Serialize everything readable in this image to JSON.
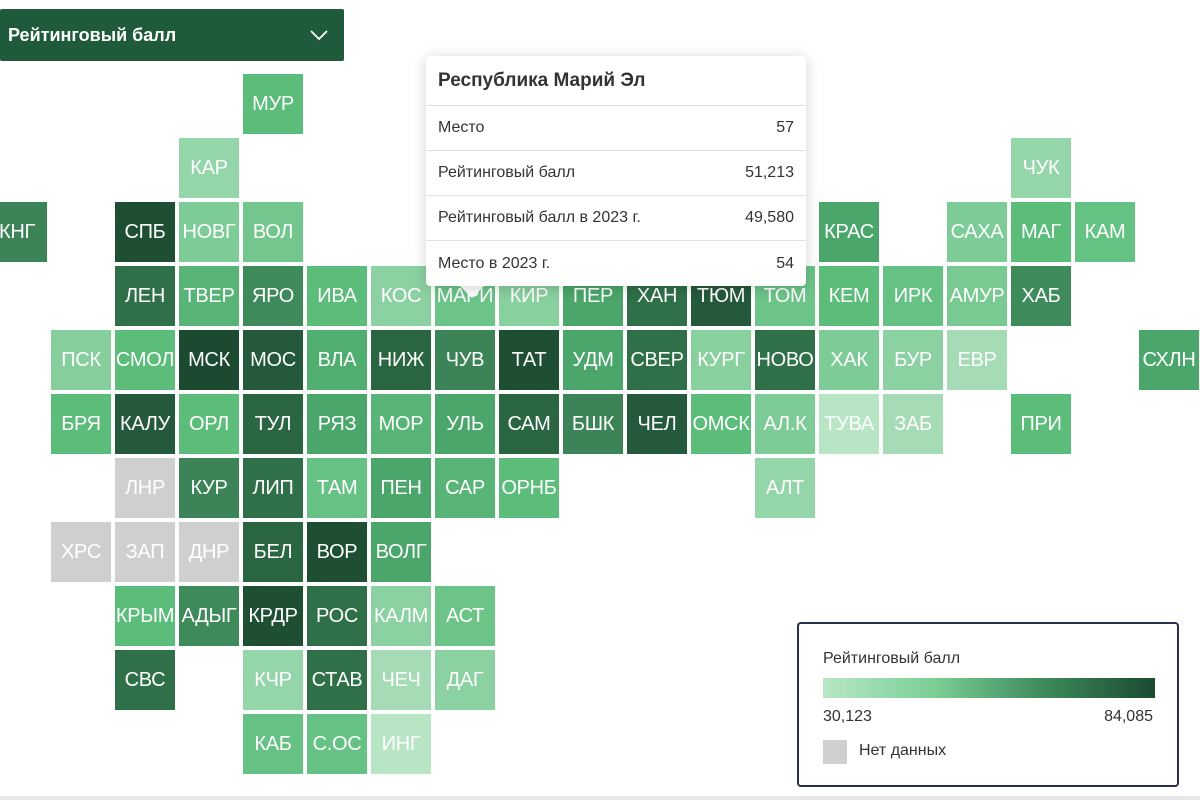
{
  "dropdown": {
    "label": "Рейтинговый балл"
  },
  "tooltip": {
    "title": "Республика Марий Эл",
    "rows": [
      {
        "label": "Место",
        "value": "57"
      },
      {
        "label": "Рейтинговый балл",
        "value": "51,213"
      },
      {
        "label": "Рейтинговый балл в 2023 г.",
        "value": "49,580"
      },
      {
        "label": "Место в 2023 г.",
        "value": "54"
      }
    ]
  },
  "legend": {
    "title": "Рейтинговый балл",
    "min": "30,123",
    "max": "84,085",
    "no_data": "Нет данных"
  },
  "colors": {
    "no_data": "#cfcfcf",
    "scale_light": "#b8e6c5",
    "scale_dark": "#1b4a30"
  },
  "regions": [
    {
      "code": "МУР",
      "col": 3,
      "row": 0,
      "color": "#5cbc7a"
    },
    {
      "code": "КАР",
      "col": 2,
      "row": 1,
      "color": "#95d5aa"
    },
    {
      "code": "ЧУК",
      "col": 15,
      "row": 1,
      "color": "#95d5aa"
    },
    {
      "code": "КНГ",
      "col": -1,
      "row": 2,
      "color": "#3c8457"
    },
    {
      "code": "СПБ",
      "col": 1,
      "row": 2,
      "color": "#1e4f33"
    },
    {
      "code": "НОВГ",
      "col": 2,
      "row": 2,
      "color": "#7dcb96"
    },
    {
      "code": "ВОЛ",
      "col": 3,
      "row": 2,
      "color": "#73c78e"
    },
    {
      "code": "КРАС",
      "col": 12,
      "row": 2,
      "color": "#4aa66a"
    },
    {
      "code": "САХА",
      "col": 14,
      "row": 2,
      "color": "#7dcb96"
    },
    {
      "code": "МАГ",
      "col": 15,
      "row": 2,
      "color": "#5cbc7a"
    },
    {
      "code": "КАМ",
      "col": 16,
      "row": 2,
      "color": "#64c383"
    },
    {
      "code": "ЛЕН",
      "col": 1,
      "row": 3,
      "color": "#2f7048"
    },
    {
      "code": "ТВЕР",
      "col": 2,
      "row": 3,
      "color": "#59b577"
    },
    {
      "code": "ЯРО",
      "col": 3,
      "row": 3,
      "color": "#3f8a5b"
    },
    {
      "code": "ИВА",
      "col": 4,
      "row": 3,
      "color": "#5cbc7a"
    },
    {
      "code": "КОС",
      "col": 5,
      "row": 3,
      "color": "#8cd1a2"
    },
    {
      "code": "МАРИ",
      "col": 6,
      "row": 3,
      "color": "#6cc488"
    },
    {
      "code": "КИР",
      "col": 7,
      "row": 3,
      "color": "#89d09f"
    },
    {
      "code": "ПЕР",
      "col": 8,
      "row": 3,
      "color": "#4aa66a"
    },
    {
      "code": "ХАН",
      "col": 9,
      "row": 3,
      "color": "#2f7048"
    },
    {
      "code": "ТЮМ",
      "col": 10,
      "row": 3,
      "color": "#25593b"
    },
    {
      "code": "ТОМ",
      "col": 11,
      "row": 3,
      "color": "#6cc488"
    },
    {
      "code": "КЕМ",
      "col": 12,
      "row": 3,
      "color": "#5cbc7a"
    },
    {
      "code": "ИРК",
      "col": 13,
      "row": 3,
      "color": "#66c184"
    },
    {
      "code": "АМУР",
      "col": 14,
      "row": 3,
      "color": "#79c992"
    },
    {
      "code": "ХАБ",
      "col": 15,
      "row": 3,
      "color": "#3f8a5b"
    },
    {
      "code": "ПСК",
      "col": 0,
      "row": 4,
      "color": "#86cf9d"
    },
    {
      "code": "СМОЛ",
      "col": 1,
      "row": 4,
      "color": "#5cbc7a"
    },
    {
      "code": "МСК",
      "col": 2,
      "row": 4,
      "color": "#1b4a30"
    },
    {
      "code": "МОС",
      "col": 3,
      "row": 4,
      "color": "#25593b"
    },
    {
      "code": "ВЛА",
      "col": 4,
      "row": 4,
      "color": "#50ae70"
    },
    {
      "code": "НИЖ",
      "col": 5,
      "row": 4,
      "color": "#2a6642"
    },
    {
      "code": "ЧУВ",
      "col": 6,
      "row": 4,
      "color": "#3c8457"
    },
    {
      "code": "ТАТ",
      "col": 7,
      "row": 4,
      "color": "#1e4f33"
    },
    {
      "code": "УДМ",
      "col": 8,
      "row": 4,
      "color": "#4aa66a"
    },
    {
      "code": "СВЕР",
      "col": 9,
      "row": 4,
      "color": "#2f7048"
    },
    {
      "code": "КУРГ",
      "col": 10,
      "row": 4,
      "color": "#89d09f"
    },
    {
      "code": "НОВО",
      "col": 11,
      "row": 4,
      "color": "#2f7048"
    },
    {
      "code": "ХАК",
      "col": 12,
      "row": 4,
      "color": "#7dcb96"
    },
    {
      "code": "БУР",
      "col": 13,
      "row": 4,
      "color": "#8cd1a2"
    },
    {
      "code": "ЕВР",
      "col": 14,
      "row": 4,
      "color": "#a6dcb5"
    },
    {
      "code": "СХЛН",
      "col": 17,
      "row": 4,
      "color": "#4aa66a"
    },
    {
      "code": "БРЯ",
      "col": 0,
      "row": 5,
      "color": "#5cbc7a"
    },
    {
      "code": "КАЛУ",
      "col": 1,
      "row": 5,
      "color": "#25593b"
    },
    {
      "code": "ОРЛ",
      "col": 2,
      "row": 5,
      "color": "#5cbc7a"
    },
    {
      "code": "ТУЛ",
      "col": 3,
      "row": 5,
      "color": "#2a6642"
    },
    {
      "code": "РЯЗ",
      "col": 4,
      "row": 5,
      "color": "#4aa66a"
    },
    {
      "code": "МОР",
      "col": 5,
      "row": 5,
      "color": "#59b577"
    },
    {
      "code": "УЛЬ",
      "col": 6,
      "row": 5,
      "color": "#4aa66a"
    },
    {
      "code": "САМ",
      "col": 7,
      "row": 5,
      "color": "#2a6642"
    },
    {
      "code": "БШК",
      "col": 8,
      "row": 5,
      "color": "#3c8457"
    },
    {
      "code": "ЧЕЛ",
      "col": 9,
      "row": 5,
      "color": "#25593b"
    },
    {
      "code": "ОМСК",
      "col": 10,
      "row": 5,
      "color": "#5cbc7a"
    },
    {
      "code": "АЛ.К",
      "col": 11,
      "row": 5,
      "color": "#7dcb96"
    },
    {
      "code": "ТУВА",
      "col": 12,
      "row": 5,
      "color": "#b8e6c5"
    },
    {
      "code": "ЗАБ",
      "col": 13,
      "row": 5,
      "color": "#a6dcb5"
    },
    {
      "code": "ПРИ",
      "col": 15,
      "row": 5,
      "color": "#5cbc7a"
    },
    {
      "code": "ЛНР",
      "col": 1,
      "row": 6,
      "color": "#cfcfcf"
    },
    {
      "code": "КУР",
      "col": 2,
      "row": 6,
      "color": "#3c8457"
    },
    {
      "code": "ЛИП",
      "col": 3,
      "row": 6,
      "color": "#2f7048"
    },
    {
      "code": "ТАМ",
      "col": 4,
      "row": 6,
      "color": "#66c184"
    },
    {
      "code": "ПЕН",
      "col": 5,
      "row": 6,
      "color": "#4aa66a"
    },
    {
      "code": "САР",
      "col": 6,
      "row": 6,
      "color": "#59b577"
    },
    {
      "code": "ОРНБ",
      "col": 7,
      "row": 6,
      "color": "#5cbc7a"
    },
    {
      "code": "АЛТ",
      "col": 11,
      "row": 6,
      "color": "#95d5aa"
    },
    {
      "code": "ХРС",
      "col": 0,
      "row": 7,
      "color": "#cfcfcf"
    },
    {
      "code": "ЗАП",
      "col": 1,
      "row": 7,
      "color": "#cfcfcf"
    },
    {
      "code": "ДНР",
      "col": 2,
      "row": 7,
      "color": "#cfcfcf"
    },
    {
      "code": "БЕЛ",
      "col": 3,
      "row": 7,
      "color": "#2a6642"
    },
    {
      "code": "ВОР",
      "col": 4,
      "row": 7,
      "color": "#1e4f33"
    },
    {
      "code": "ВОЛГ",
      "col": 5,
      "row": 7,
      "color": "#4aa66a"
    },
    {
      "code": "КРЫМ",
      "col": 1,
      "row": 8,
      "color": "#5cbc7a"
    },
    {
      "code": "АДЫГ",
      "col": 2,
      "row": 8,
      "color": "#3f8a5b"
    },
    {
      "code": "КРДР",
      "col": 3,
      "row": 8,
      "color": "#1e4f33"
    },
    {
      "code": "РОС",
      "col": 4,
      "row": 8,
      "color": "#2f7048"
    },
    {
      "code": "КАЛМ",
      "col": 5,
      "row": 8,
      "color": "#8cd1a2"
    },
    {
      "code": "АСТ",
      "col": 6,
      "row": 8,
      "color": "#6cc488"
    },
    {
      "code": "СВС",
      "col": 1,
      "row": 9,
      "color": "#2f7048"
    },
    {
      "code": "КЧР",
      "col": 3,
      "row": 9,
      "color": "#95d5aa"
    },
    {
      "code": "СТАВ",
      "col": 4,
      "row": 9,
      "color": "#2f7048"
    },
    {
      "code": "ЧЕЧ",
      "col": 5,
      "row": 9,
      "color": "#a6dcb5"
    },
    {
      "code": "ДАГ",
      "col": 6,
      "row": 9,
      "color": "#8cd1a2"
    },
    {
      "code": "КАБ",
      "col": 3,
      "row": 10,
      "color": "#66c184"
    },
    {
      "code": "С.ОС",
      "col": 4,
      "row": 10,
      "color": "#66c184"
    },
    {
      "code": "ИНГ",
      "col": 5,
      "row": 10,
      "color": "#b8e6c5"
    }
  ]
}
